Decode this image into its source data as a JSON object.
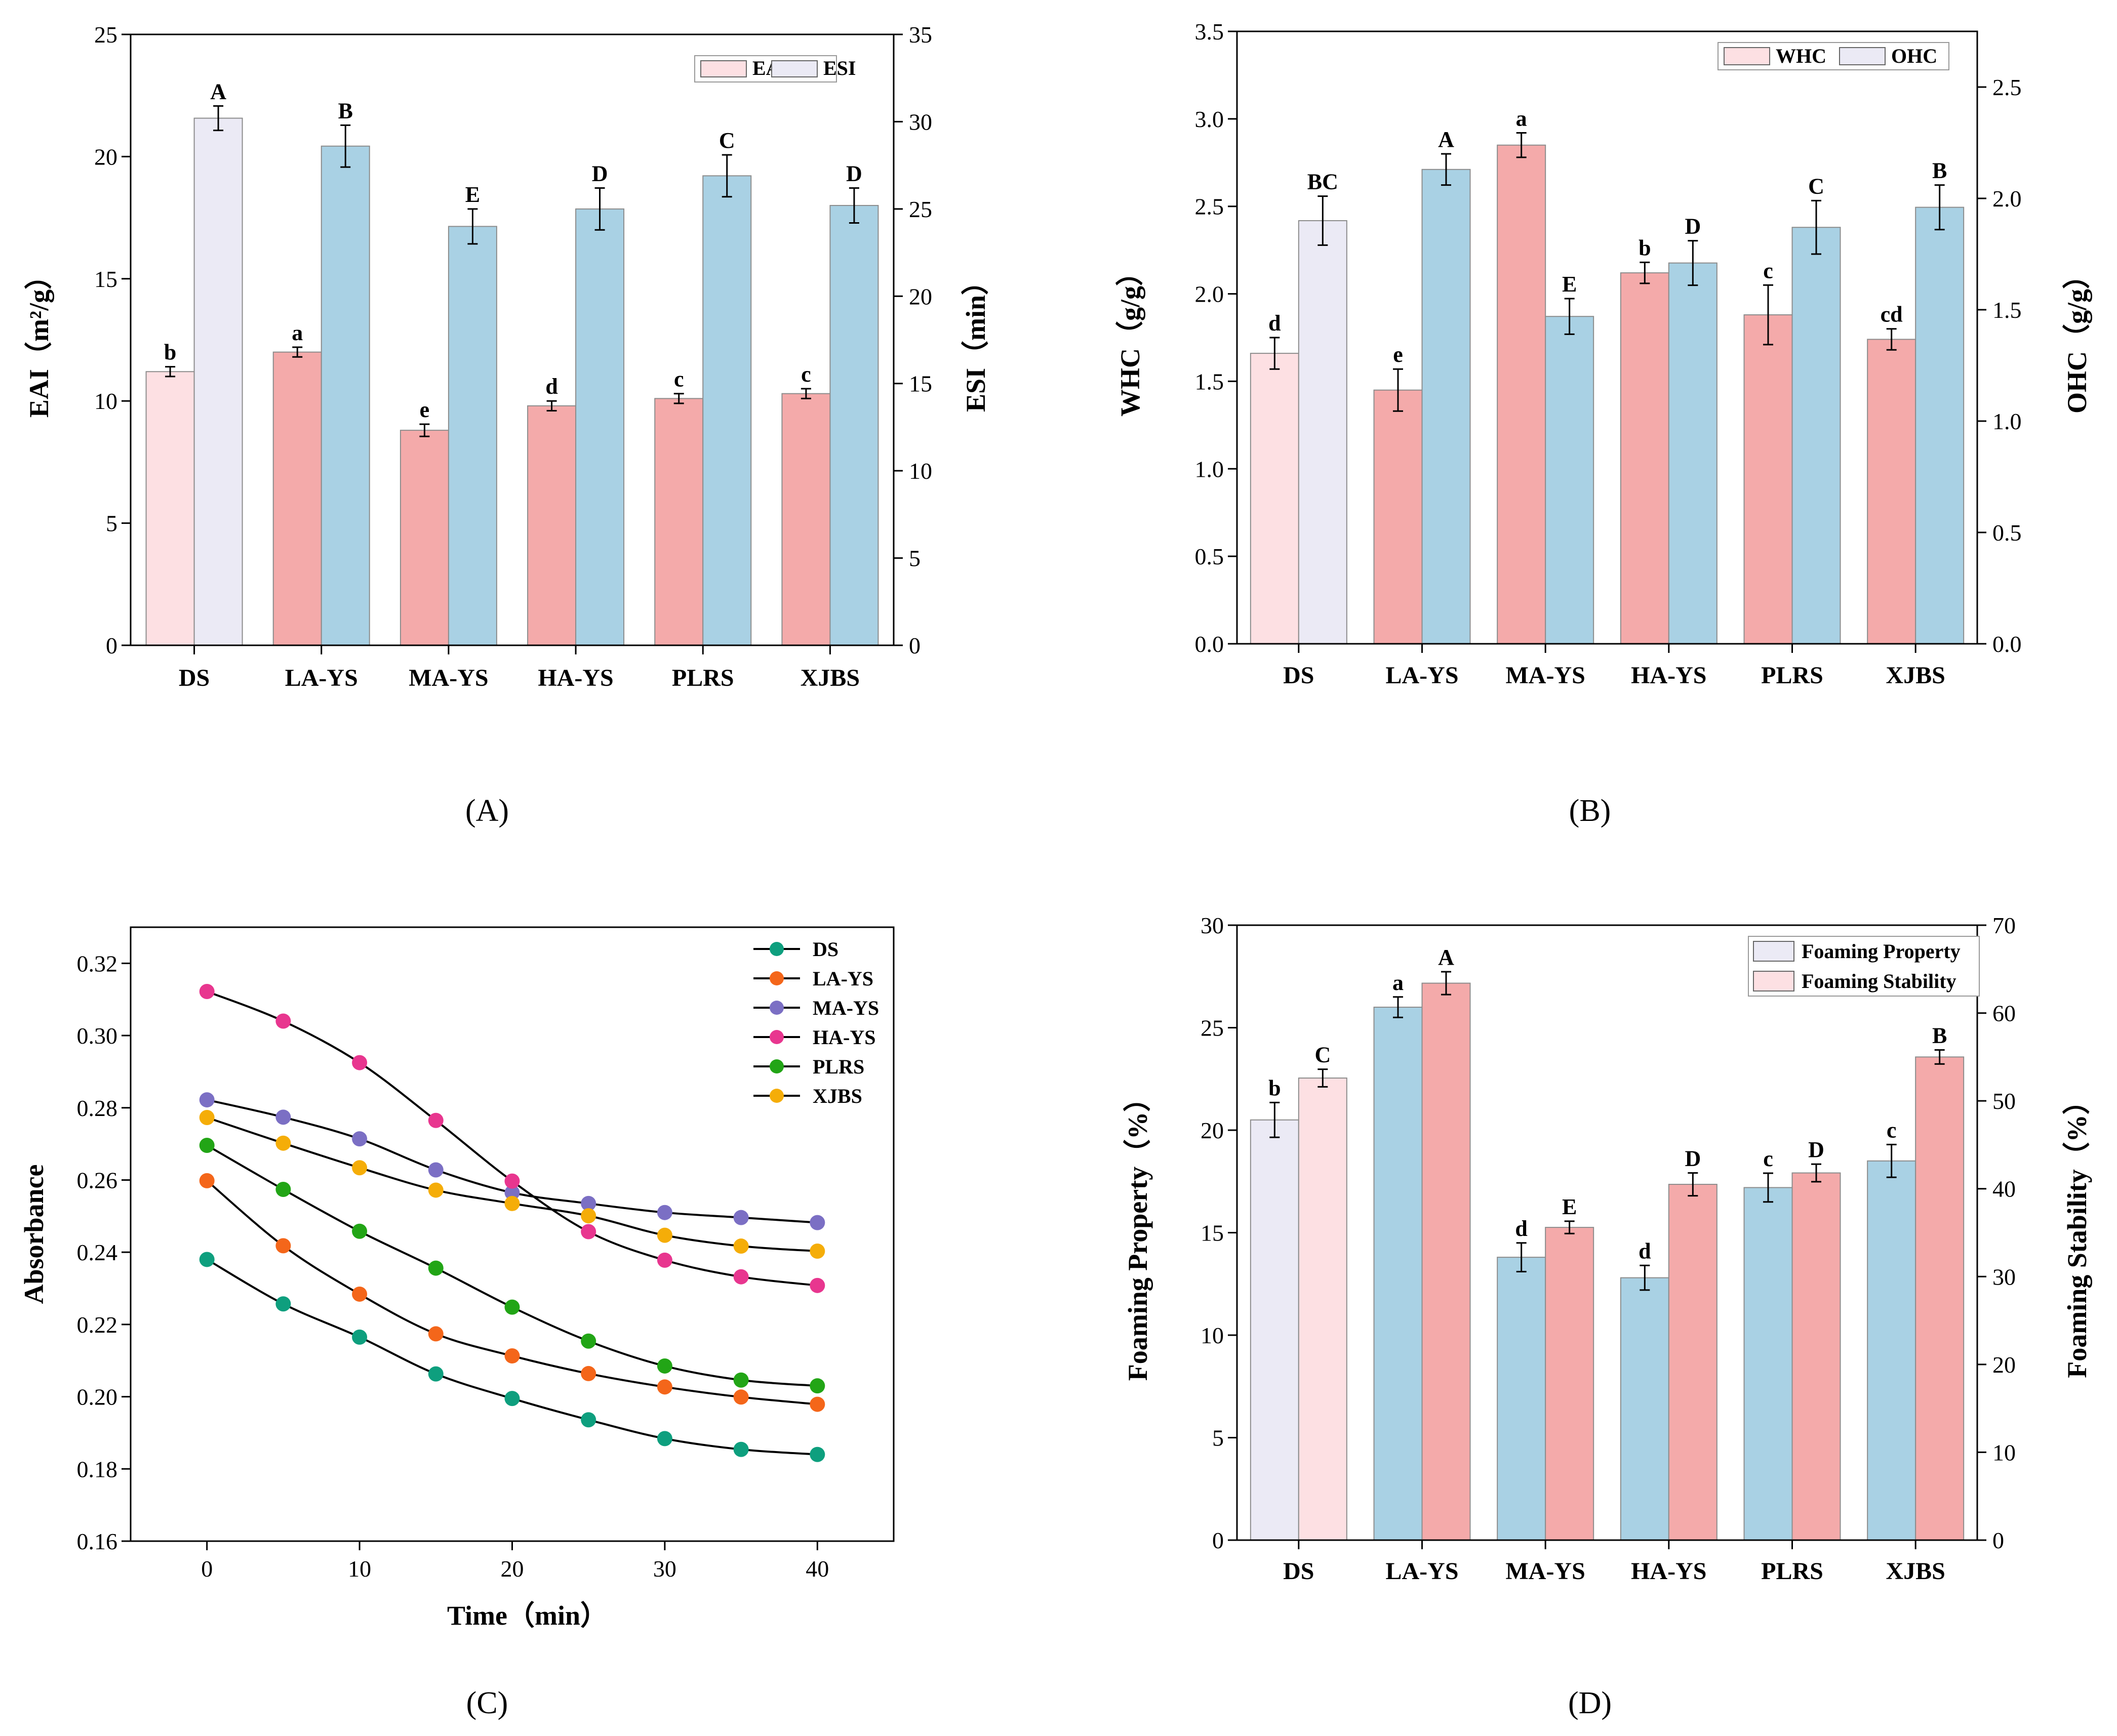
{
  "chart_data": [
    {
      "panel": "(A)",
      "type": "bar",
      "categories": [
        "DS",
        "LA-YS",
        "MA-YS",
        "HA-YS",
        "PLRS",
        "XJBS"
      ],
      "series": [
        {
          "name": "EAI",
          "axis": "left",
          "values": [
            11.2,
            12.0,
            8.8,
            9.8,
            10.1,
            10.3
          ],
          "errors": [
            0.2,
            0.2,
            0.25,
            0.2,
            0.2,
            0.2
          ],
          "letters": [
            "b",
            "a",
            "e",
            "d",
            "c",
            "c"
          ]
        },
        {
          "name": "ESI",
          "axis": "right",
          "values": [
            30.2,
            28.6,
            24.0,
            25.0,
            26.9,
            25.2
          ],
          "errors": [
            0.7,
            1.2,
            1.0,
            1.2,
            1.2,
            1.0
          ],
          "letters": [
            "A",
            "B",
            "E",
            "D",
            "C",
            "D"
          ]
        }
      ],
      "ylabel_left": "EAI（m²/g）",
      "ylabel_right": "ESI（min）",
      "ylim_left": [
        0,
        25
      ],
      "ylim_right": [
        0,
        35
      ],
      "yticks_left": [
        "0",
        "5",
        "10",
        "15",
        "20",
        "25"
      ],
      "yticks_right": [
        "0",
        "5",
        "10",
        "15",
        "20",
        "25",
        "30",
        "35"
      ],
      "legend": [
        "EAI",
        "ESI"
      ],
      "legend_position": "top-right"
    },
    {
      "panel": "(B)",
      "type": "bar",
      "categories": [
        "DS",
        "LA-YS",
        "MA-YS",
        "HA-YS",
        "PLRS",
        "XJBS"
      ],
      "series": [
        {
          "name": "WHC",
          "axis": "left",
          "values": [
            1.66,
            1.45,
            2.85,
            2.12,
            1.88,
            1.74
          ],
          "errors": [
            0.09,
            0.12,
            0.07,
            0.06,
            0.17,
            0.06
          ],
          "letters": [
            "d",
            "e",
            "a",
            "b",
            "c",
            "cd"
          ]
        },
        {
          "name": "OHC",
          "axis": "right",
          "values": [
            1.9,
            2.13,
            1.47,
            1.71,
            1.87,
            1.96
          ],
          "errors": [
            0.11,
            0.07,
            0.08,
            0.1,
            0.12,
            0.1
          ],
          "letters": [
            "BC",
            "A",
            "E",
            "D",
            "C",
            "B"
          ]
        }
      ],
      "ylabel_left": "WHC（g/g）",
      "ylabel_right": "OHC（g/g）",
      "ylim_left": [
        0,
        3.5
      ],
      "ylim_right": [
        0,
        2.75
      ],
      "yticks_left": [
        "0.0",
        "0.5",
        "1.0",
        "1.5",
        "2.0",
        "2.5",
        "3.0",
        "3.5"
      ],
      "yticks_right": [
        "0.0",
        "0.5",
        "1.0",
        "1.5",
        "2.0",
        "2.5"
      ],
      "legend": [
        "WHC",
        "OHC"
      ],
      "legend_position": "top-right"
    },
    {
      "panel": "(C)",
      "type": "line",
      "x": [
        0,
        5,
        10,
        15,
        20,
        25,
        30,
        35,
        40
      ],
      "series": [
        {
          "name": "DS",
          "color": "#0e9f7e",
          "values": [
            0.238,
            0.2257,
            0.2165,
            0.2063,
            0.1995,
            0.1936,
            0.1884,
            0.1854,
            0.184
          ]
        },
        {
          "name": "LA-YS",
          "color": "#f4661a",
          "values": [
            0.2598,
            0.2418,
            0.2284,
            0.2174,
            0.2113,
            0.2064,
            0.2027,
            0.1999,
            0.1979
          ]
        },
        {
          "name": "MA-YS",
          "color": "#7b6fc4",
          "values": [
            0.2822,
            0.2774,
            0.2714,
            0.2628,
            0.2565,
            0.2535,
            0.251,
            0.2496,
            0.2482
          ]
        },
        {
          "name": "HA-YS",
          "color": "#e8368f",
          "values": [
            0.3122,
            0.304,
            0.2925,
            0.2765,
            0.2597,
            0.2457,
            0.2378,
            0.2332,
            0.2308
          ]
        },
        {
          "name": "PLRS",
          "color": "#22a516",
          "values": [
            0.2696,
            0.2574,
            0.2458,
            0.2356,
            0.2248,
            0.2154,
            0.2085,
            0.2046,
            0.203
          ]
        },
        {
          "name": "XJBS",
          "color": "#f5ad08",
          "values": [
            0.2773,
            0.2702,
            0.2634,
            0.2572,
            0.2535,
            0.2501,
            0.2447,
            0.2417,
            0.2403
          ]
        }
      ],
      "xlabel": "Time（min）",
      "ylabel": "Absorbance",
      "xlim": [
        -5,
        45
      ],
      "ylim": [
        0.16,
        0.33
      ],
      "xticks": [
        "0",
        "10",
        "20",
        "30",
        "40"
      ],
      "yticks": [
        "0.16",
        "0.18",
        "0.20",
        "0.22",
        "0.24",
        "0.26",
        "0.28",
        "0.30",
        "0.32"
      ],
      "legend_position": "top-right"
    },
    {
      "panel": "(D)",
      "type": "bar",
      "categories": [
        "DS",
        "LA-YS",
        "MA-YS",
        "HA-YS",
        "PLRS",
        "XJBS"
      ],
      "series": [
        {
          "name": "Foaming Property",
          "axis": "left",
          "values": [
            20.5,
            26.0,
            13.8,
            12.8,
            17.2,
            18.5
          ],
          "errors": [
            0.85,
            0.5,
            0.7,
            0.6,
            0.7,
            0.8
          ],
          "letters": [
            "b",
            "a",
            "d",
            "d",
            "c",
            "c"
          ]
        },
        {
          "name": "Foaming Stability",
          "axis": "right",
          "values": [
            52.6,
            63.4,
            35.6,
            40.5,
            41.8,
            55.0
          ],
          "errors": [
            1.0,
            1.3,
            0.7,
            1.3,
            1.0,
            0.8
          ],
          "letters": [
            "C",
            "A",
            "E",
            "D",
            "D",
            "B"
          ]
        }
      ],
      "ylabel_left": "Foaming Property（%）",
      "ylabel_right": "Foaming Stability（%）",
      "ylim_left": [
        0,
        30
      ],
      "ylim_right": [
        0,
        70
      ],
      "yticks_left": [
        "0",
        "5",
        "10",
        "15",
        "20",
        "25",
        "30"
      ],
      "yticks_right": [
        "0",
        "10",
        "20",
        "30",
        "40",
        "50",
        "60",
        "70"
      ],
      "legend": [
        "Foaming Property",
        "Foaming Stability"
      ],
      "legend_position": "top-right"
    }
  ],
  "colors": {
    "pink_light": "#fde0e3",
    "lavender_light": "#ebeaf5",
    "bar_pink": "#f4aaaa",
    "bar_blue": "#a9d1e4",
    "axis": "#000000"
  }
}
